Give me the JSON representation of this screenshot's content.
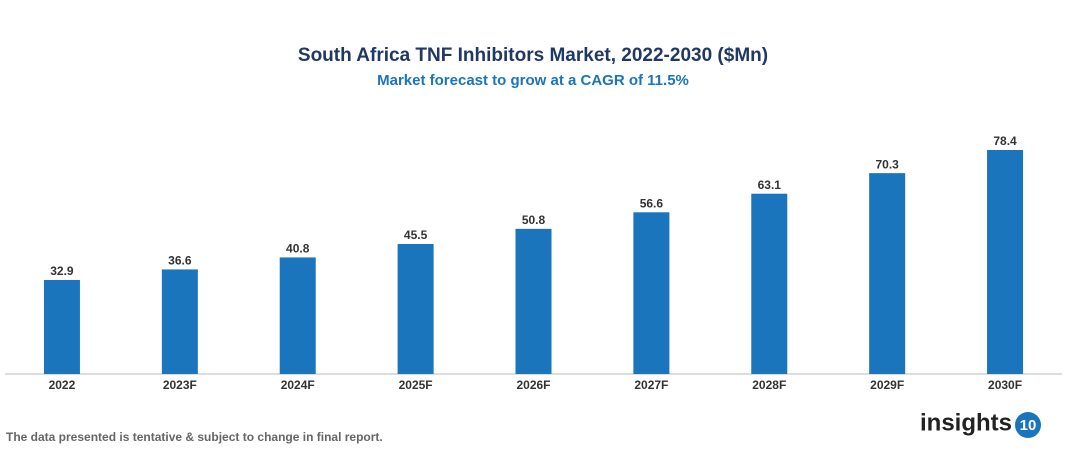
{
  "chart_data": {
    "type": "bar",
    "title": "South Africa TNF Inhibitors Market, 2022-2030 ($Mn)",
    "subtitle": "Market forecast to grow at a CAGR of 11.5%",
    "categories": [
      "2022",
      "2023F",
      "2024F",
      "2025F",
      "2026F",
      "2027F",
      "2028F",
      "2029F",
      "2030F"
    ],
    "values": [
      32.9,
      36.6,
      40.8,
      45.5,
      50.8,
      56.6,
      63.1,
      70.3,
      78.4
    ],
    "color": "#1a75bc"
  },
  "footer": {
    "note": "The data presented is tentative & subject to change in final report.",
    "logo_text": "insights",
    "logo_number": "10"
  }
}
